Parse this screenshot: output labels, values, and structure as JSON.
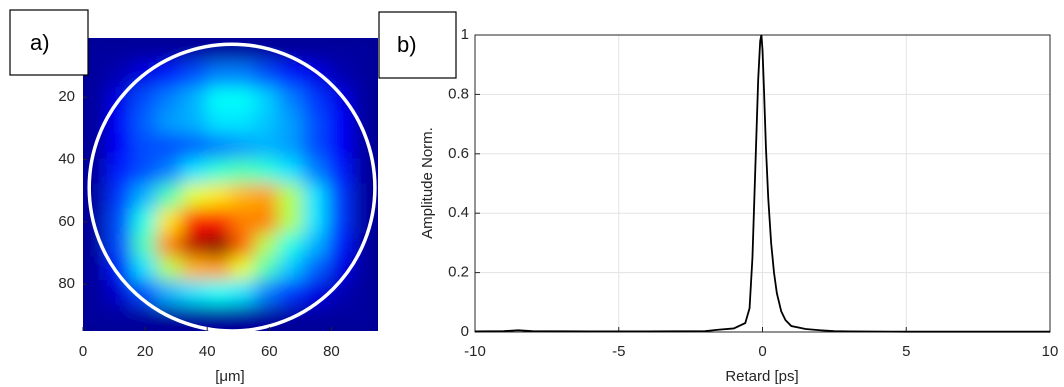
{
  "chart_data": [
    {
      "type": "heatmap",
      "label": "a)",
      "xlabel": "[μm]",
      "colormap": "jet",
      "xlim": [
        0,
        95
      ],
      "ylim": [
        95,
        1
      ],
      "xticks": [
        0,
        20,
        40,
        60,
        80
      ],
      "yticks": [
        20,
        40,
        60,
        80
      ],
      "x": [
        4,
        12,
        20,
        28,
        36,
        44,
        52,
        59,
        67,
        75,
        83,
        91
      ],
      "y": [
        5,
        13,
        21,
        28,
        36,
        44,
        52,
        60,
        68,
        75,
        83,
        91
      ],
      "z": [
        [
          0.03,
          0.03,
          0.03,
          0.03,
          0.03,
          0.03,
          0.03,
          0.03,
          0.03,
          0.03,
          0.03,
          0.03
        ],
        [
          0.03,
          0.05,
          0.1,
          0.15,
          0.2,
          0.25,
          0.25,
          0.2,
          0.15,
          0.1,
          0.05,
          0.03
        ],
        [
          0.03,
          0.1,
          0.2,
          0.25,
          0.3,
          0.38,
          0.38,
          0.33,
          0.25,
          0.18,
          0.1,
          0.03
        ],
        [
          0.03,
          0.12,
          0.22,
          0.28,
          0.3,
          0.35,
          0.35,
          0.32,
          0.28,
          0.2,
          0.12,
          0.03
        ],
        [
          0.03,
          0.12,
          0.2,
          0.2,
          0.22,
          0.25,
          0.28,
          0.3,
          0.28,
          0.2,
          0.12,
          0.03
        ],
        [
          0.03,
          0.15,
          0.2,
          0.25,
          0.35,
          0.42,
          0.45,
          0.42,
          0.35,
          0.25,
          0.15,
          0.03
        ],
        [
          0.03,
          0.18,
          0.3,
          0.45,
          0.6,
          0.65,
          0.7,
          0.72,
          0.55,
          0.35,
          0.18,
          0.03
        ],
        [
          0.03,
          0.2,
          0.4,
          0.65,
          0.85,
          0.85,
          0.75,
          0.75,
          0.55,
          0.35,
          0.18,
          0.03
        ],
        [
          0.03,
          0.2,
          0.45,
          0.75,
          0.95,
          1.0,
          0.78,
          0.55,
          0.4,
          0.3,
          0.15,
          0.03
        ],
        [
          0.03,
          0.15,
          0.35,
          0.55,
          0.7,
          0.72,
          0.6,
          0.45,
          0.32,
          0.22,
          0.1,
          0.03
        ],
        [
          0.03,
          0.08,
          0.2,
          0.3,
          0.35,
          0.38,
          0.35,
          0.25,
          0.18,
          0.1,
          0.05,
          0.03
        ],
        [
          0.03,
          0.03,
          0.03,
          0.03,
          0.03,
          0.03,
          0.03,
          0.03,
          0.03,
          0.03,
          0.03,
          0.03
        ]
      ],
      "circle": {
        "center": [
          48,
          49
        ],
        "radius": 46,
        "color": "#ffffff"
      }
    },
    {
      "type": "line",
      "label": "b)",
      "xlabel": "Retard [ps]",
      "ylabel": "Amplitude Norm.",
      "xlim": [
        -10,
        10
      ],
      "ylim": [
        0,
        1
      ],
      "xticks": [
        -10,
        -5,
        0,
        5,
        10
      ],
      "yticks": [
        0,
        0.2,
        0.4,
        0.6,
        0.8,
        1
      ],
      "grid": true,
      "series": [
        {
          "name": "Amplitude",
          "color": "#000000",
          "x": [
            -10,
            -9,
            -8.5,
            -8,
            -6,
            -4,
            -2,
            -1.5,
            -1,
            -0.6,
            -0.45,
            -0.35,
            -0.25,
            -0.15,
            -0.08,
            -0.04,
            0,
            0.05,
            0.12,
            0.2,
            0.3,
            0.4,
            0.5,
            0.65,
            0.8,
            1,
            1.5,
            2,
            2.5,
            3,
            5,
            8,
            10
          ],
          "values": [
            0.002,
            0.003,
            0.006,
            0.003,
            0.002,
            0.002,
            0.003,
            0.008,
            0.012,
            0.03,
            0.08,
            0.25,
            0.55,
            0.85,
            0.98,
            1.0,
            0.95,
            0.82,
            0.62,
            0.45,
            0.3,
            0.2,
            0.13,
            0.07,
            0.04,
            0.02,
            0.01,
            0.006,
            0.003,
            0.002,
            0.001,
            0.001,
            0.001
          ]
        }
      ]
    }
  ]
}
